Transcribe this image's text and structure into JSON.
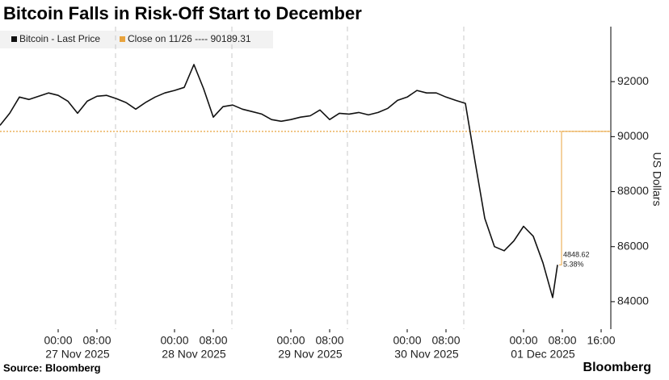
{
  "chart_data": {
    "type": "line",
    "title": "Bitcoin Falls in Risk-Off Start to December",
    "x": [
      "2025-11-26 12:00",
      "2025-11-26 14:00",
      "2025-11-26 16:00",
      "2025-11-26 18:00",
      "2025-11-26 20:00",
      "2025-11-26 22:00",
      "2025-11-27 00:00",
      "2025-11-27 02:00",
      "2025-11-27 04:00",
      "2025-11-27 06:00",
      "2025-11-27 08:00",
      "2025-11-27 10:00",
      "2025-11-27 12:00",
      "2025-11-27 14:00",
      "2025-11-27 16:00",
      "2025-11-27 18:00",
      "2025-11-27 20:00",
      "2025-11-27 22:00",
      "2025-11-28 00:00",
      "2025-11-28 02:00",
      "2025-11-28 04:00",
      "2025-11-28 06:00",
      "2025-11-28 08:00",
      "2025-11-28 10:00",
      "2025-11-28 12:00",
      "2025-11-28 14:00",
      "2025-11-28 16:00",
      "2025-11-28 18:00",
      "2025-11-28 20:00",
      "2025-11-28 22:00",
      "2025-11-29 00:00",
      "2025-11-29 02:00",
      "2025-11-29 04:00",
      "2025-11-29 06:00",
      "2025-11-29 08:00",
      "2025-11-29 10:00",
      "2025-11-29 12:00",
      "2025-11-29 14:00",
      "2025-11-29 16:00",
      "2025-11-29 18:00",
      "2025-11-29 20:00",
      "2025-11-29 22:00",
      "2025-11-30 00:00",
      "2025-11-30 02:00",
      "2025-11-30 04:00",
      "2025-11-30 06:00",
      "2025-11-30 08:00",
      "2025-11-30 10:00",
      "2025-11-30 12:00",
      "2025-11-30 14:00",
      "2025-11-30 16:00",
      "2025-11-30 18:00",
      "2025-11-30 20:00",
      "2025-11-30 22:00",
      "2025-12-01 00:00",
      "2025-12-01 02:00",
      "2025-12-01 04:00",
      "2025-12-01 06:00",
      "2025-12-01 07:00"
    ],
    "series": [
      {
        "name": "Bitcoin - Last Price",
        "color": "#111111",
        "values": [
          90410,
          90850,
          91440,
          91350,
          91470,
          91590,
          91500,
          91290,
          90850,
          91290,
          91470,
          91500,
          91380,
          91240,
          91000,
          91240,
          91440,
          91590,
          91680,
          91790,
          92620,
          91740,
          90710,
          91090,
          91150,
          91000,
          90910,
          90820,
          90620,
          90560,
          90620,
          90710,
          90760,
          90970,
          90620,
          90850,
          90820,
          90880,
          90790,
          90880,
          91030,
          91320,
          91440,
          91680,
          91590,
          91590,
          91440,
          91320,
          91210,
          89090,
          87030,
          86000,
          85850,
          86210,
          86740,
          86380,
          85410,
          84150,
          85340.69
        ]
      }
    ],
    "reference_line": {
      "name": "Close on 11/26 ---- 90189.31",
      "value": 90189.31,
      "color": "#e8a33d"
    },
    "annotations": [
      "4848.62",
      "5.38%"
    ],
    "xlim": [
      "2025-11-26 12:00",
      "2025-12-01 18:00"
    ],
    "xticks": [
      {
        "value": "2025-11-27 00:00",
        "label": "00:00"
      },
      {
        "value": "2025-11-27 08:00",
        "label": "08:00"
      },
      {
        "value": "2025-11-28 00:00",
        "label": "00:00"
      },
      {
        "value": "2025-11-28 08:00",
        "label": "08:00"
      },
      {
        "value": "2025-11-29 00:00",
        "label": "00:00"
      },
      {
        "value": "2025-11-29 08:00",
        "label": "08:00"
      },
      {
        "value": "2025-11-30 00:00",
        "label": "00:00"
      },
      {
        "value": "2025-11-30 08:00",
        "label": "08:00"
      },
      {
        "value": "2025-12-01 00:00",
        "label": "00:00"
      },
      {
        "value": "2025-12-01 08:00",
        "label": "08:00"
      },
      {
        "value": "2025-12-01 16:00",
        "label": "16:00"
      }
    ],
    "date_labels": [
      {
        "value": "2025-11-27 00:00",
        "label": "27 Nov 2025"
      },
      {
        "value": "2025-11-28 00:00",
        "label": "28 Nov 2025"
      },
      {
        "value": "2025-11-29 00:00",
        "label": "29 Nov 2025"
      },
      {
        "value": "2025-11-30 00:00",
        "label": "30 Nov 2025"
      },
      {
        "value": "2025-12-01 00:00",
        "label": "01 Dec 2025"
      }
    ],
    "ylim": [
      83000,
      94000
    ],
    "yticks": [
      84000,
      86000,
      88000,
      90000,
      92000
    ],
    "ylabel": "US Dollars",
    "source": "Source: Bloomberg",
    "brand": "Bloomberg"
  }
}
